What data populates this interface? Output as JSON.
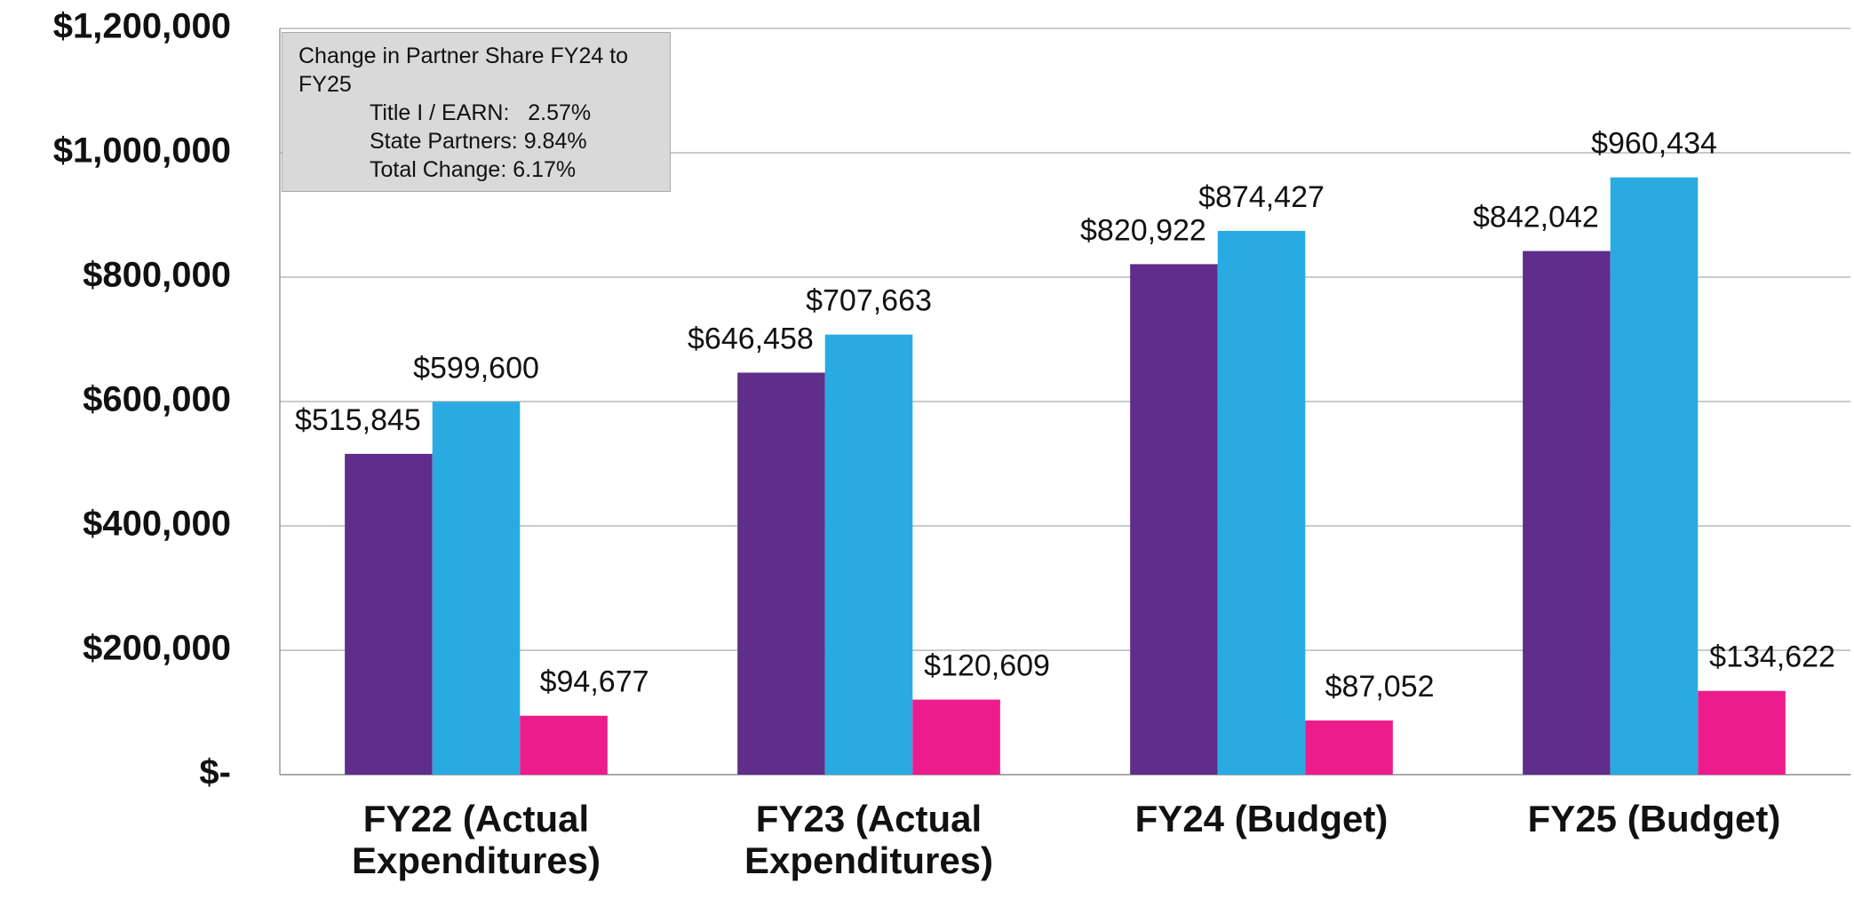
{
  "chart_data": {
    "type": "bar",
    "categories": [
      "FY22 (Actual Expenditures)",
      "FY23 (Actual Expenditures)",
      "FY24 (Budget)",
      "FY25 (Budget)"
    ],
    "series": [
      {
        "color": "#5f2d8a",
        "values": [
          515845,
          646458,
          820922,
          842042
        ],
        "value_labels": [
          "$515,845",
          "$646,458",
          "$820,922",
          "$842,042"
        ]
      },
      {
        "color": "#29abe2",
        "values": [
          599600,
          707663,
          874427,
          960434
        ],
        "value_labels": [
          "$599,600",
          "$707,663",
          "$874,427",
          "$960,434"
        ]
      },
      {
        "color": "#ec1c8c",
        "values": [
          94677,
          120609,
          87052,
          134622
        ],
        "value_labels": [
          "$94,677",
          "$120,609",
          "$87,052",
          "$134,622"
        ]
      }
    ],
    "ylim": [
      0,
      1200000
    ],
    "yticks": [
      {
        "value": 0,
        "label": "$-"
      },
      {
        "value": 200000,
        "label": "$200,000"
      },
      {
        "value": 400000,
        "label": "$400,000"
      },
      {
        "value": 600000,
        "label": "$600,000"
      },
      {
        "value": 800000,
        "label": "$800,000"
      },
      {
        "value": 1000000,
        "label": "$1,000,000"
      },
      {
        "value": 1200000,
        "label": "$1,200,000"
      }
    ],
    "grid": true,
    "annotation": {
      "heading": "Change in Partner Share  FY24 to FY25",
      "lines": [
        "Title I / EARN:   2.57%",
        "State Partners: 9.84%",
        "Total Change: 6.17%"
      ]
    }
  }
}
